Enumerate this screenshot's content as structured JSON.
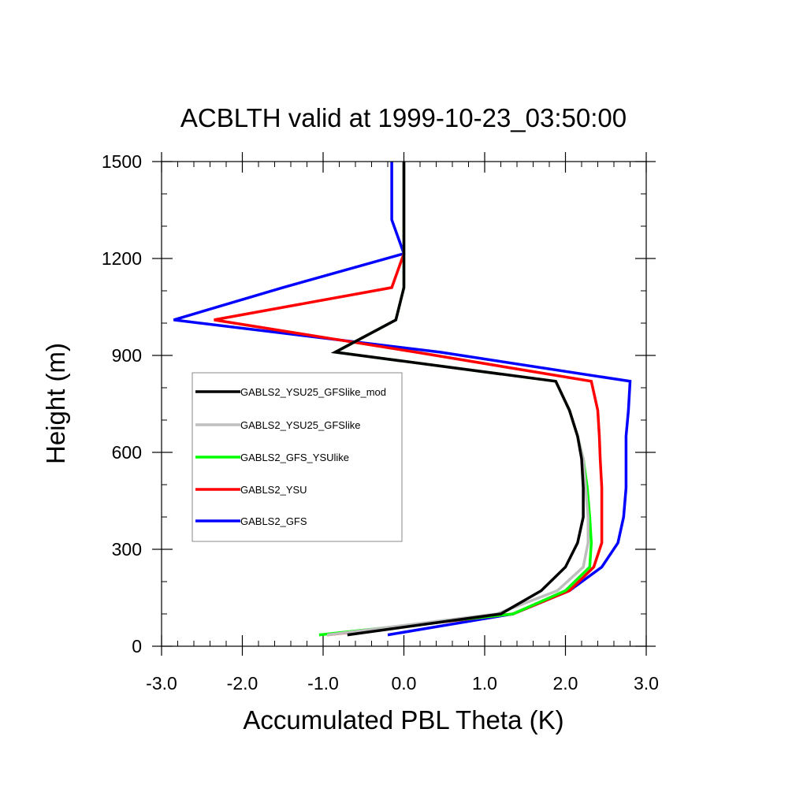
{
  "chart_data": {
    "type": "line",
    "title": "ACBLTH valid at 1999-10-23_03:50:00",
    "xlabel": "Accumulated PBL Theta (K)",
    "ylabel": "Height (m)",
    "xlim": [
      -3.0,
      3.0
    ],
    "ylim": [
      0,
      1500
    ],
    "xticks": [
      -3.0,
      -2.0,
      -1.0,
      0.0,
      1.0,
      2.0,
      3.0
    ],
    "xtick_labels": [
      "-3.0",
      "-2.0",
      "-1.0",
      "0.0",
      "1.0",
      "2.0",
      "3.0"
    ],
    "yticks": [
      0,
      300,
      600,
      900,
      1200,
      1500
    ],
    "ytick_labels": [
      "0",
      "300",
      "600",
      "900",
      "1200",
      "1500"
    ],
    "grid": false,
    "legend_position": "center-left inside",
    "series": [
      {
        "name": "GABLS2_YSU25_GFSlike_mod",
        "color": "#000000",
        "points": [
          [
            -0.7,
            35
          ],
          [
            1.2,
            100
          ],
          [
            1.7,
            172
          ],
          [
            2.0,
            245
          ],
          [
            2.15,
            320
          ],
          [
            2.22,
            400
          ],
          [
            2.22,
            490
          ],
          [
            2.2,
            580
          ],
          [
            2.15,
            650
          ],
          [
            2.05,
            730
          ],
          [
            1.88,
            820
          ],
          [
            -0.85,
            910
          ],
          [
            -0.1,
            1010
          ],
          [
            0.0,
            1110
          ],
          [
            0.0,
            1215
          ],
          [
            0.0,
            1320
          ],
          [
            0.0,
            1500
          ]
        ]
      },
      {
        "name": "GABLS2_YSU25_GFSlike",
        "color": "#bebebe",
        "points": [
          [
            -0.95,
            35
          ],
          [
            1.15,
            100
          ],
          [
            1.9,
            172
          ],
          [
            2.22,
            245
          ],
          [
            2.28,
            320
          ],
          [
            2.28,
            400
          ],
          [
            2.25,
            490
          ],
          [
            2.22,
            580
          ],
          [
            2.15,
            650
          ],
          [
            2.05,
            730
          ],
          [
            1.88,
            820
          ],
          [
            -0.85,
            910
          ],
          [
            -0.1,
            1010
          ],
          [
            0.0,
            1110
          ],
          [
            0.0,
            1215
          ],
          [
            0.0,
            1320
          ],
          [
            0.0,
            1500
          ]
        ]
      },
      {
        "name": "GABLS2_GFS_YSUlike",
        "color": "#00ff00",
        "points": [
          [
            -1.05,
            35
          ],
          [
            1.35,
            100
          ],
          [
            2.0,
            172
          ],
          [
            2.3,
            245
          ],
          [
            2.32,
            320
          ],
          [
            2.3,
            400
          ],
          [
            2.27,
            490
          ],
          [
            2.22,
            580
          ],
          [
            2.15,
            650
          ],
          [
            2.05,
            730
          ],
          [
            1.88,
            820
          ],
          [
            -0.85,
            910
          ],
          [
            -0.1,
            1010
          ],
          [
            0.0,
            1110
          ],
          [
            0.0,
            1215
          ],
          [
            0.0,
            1320
          ],
          [
            0.0,
            1500
          ]
        ]
      },
      {
        "name": "GABLS2_YSU",
        "color": "#ff0000",
        "points": [
          [
            -0.95,
            35
          ],
          [
            1.35,
            100
          ],
          [
            2.05,
            172
          ],
          [
            2.35,
            245
          ],
          [
            2.45,
            320
          ],
          [
            2.45,
            400
          ],
          [
            2.45,
            490
          ],
          [
            2.43,
            580
          ],
          [
            2.42,
            650
          ],
          [
            2.4,
            730
          ],
          [
            2.32,
            820
          ],
          [
            0.15,
            910
          ],
          [
            -2.35,
            1010
          ],
          [
            -0.15,
            1110
          ],
          [
            0.0,
            1215
          ],
          [
            0.0,
            1320
          ],
          [
            0.0,
            1500
          ]
        ]
      },
      {
        "name": "GABLS2_GFS",
        "color": "#0000ff",
        "points": [
          [
            -0.2,
            35
          ],
          [
            1.35,
            100
          ],
          [
            2.05,
            172
          ],
          [
            2.45,
            245
          ],
          [
            2.65,
            320
          ],
          [
            2.72,
            400
          ],
          [
            2.75,
            490
          ],
          [
            2.75,
            580
          ],
          [
            2.75,
            650
          ],
          [
            2.78,
            730
          ],
          [
            2.8,
            820
          ],
          [
            0.45,
            910
          ],
          [
            -2.85,
            1010
          ],
          [
            -1.5,
            1110
          ],
          [
            0.0,
            1215
          ],
          [
            -0.15,
            1320
          ],
          [
            -0.15,
            1400
          ],
          [
            -0.15,
            1500
          ]
        ]
      }
    ]
  }
}
